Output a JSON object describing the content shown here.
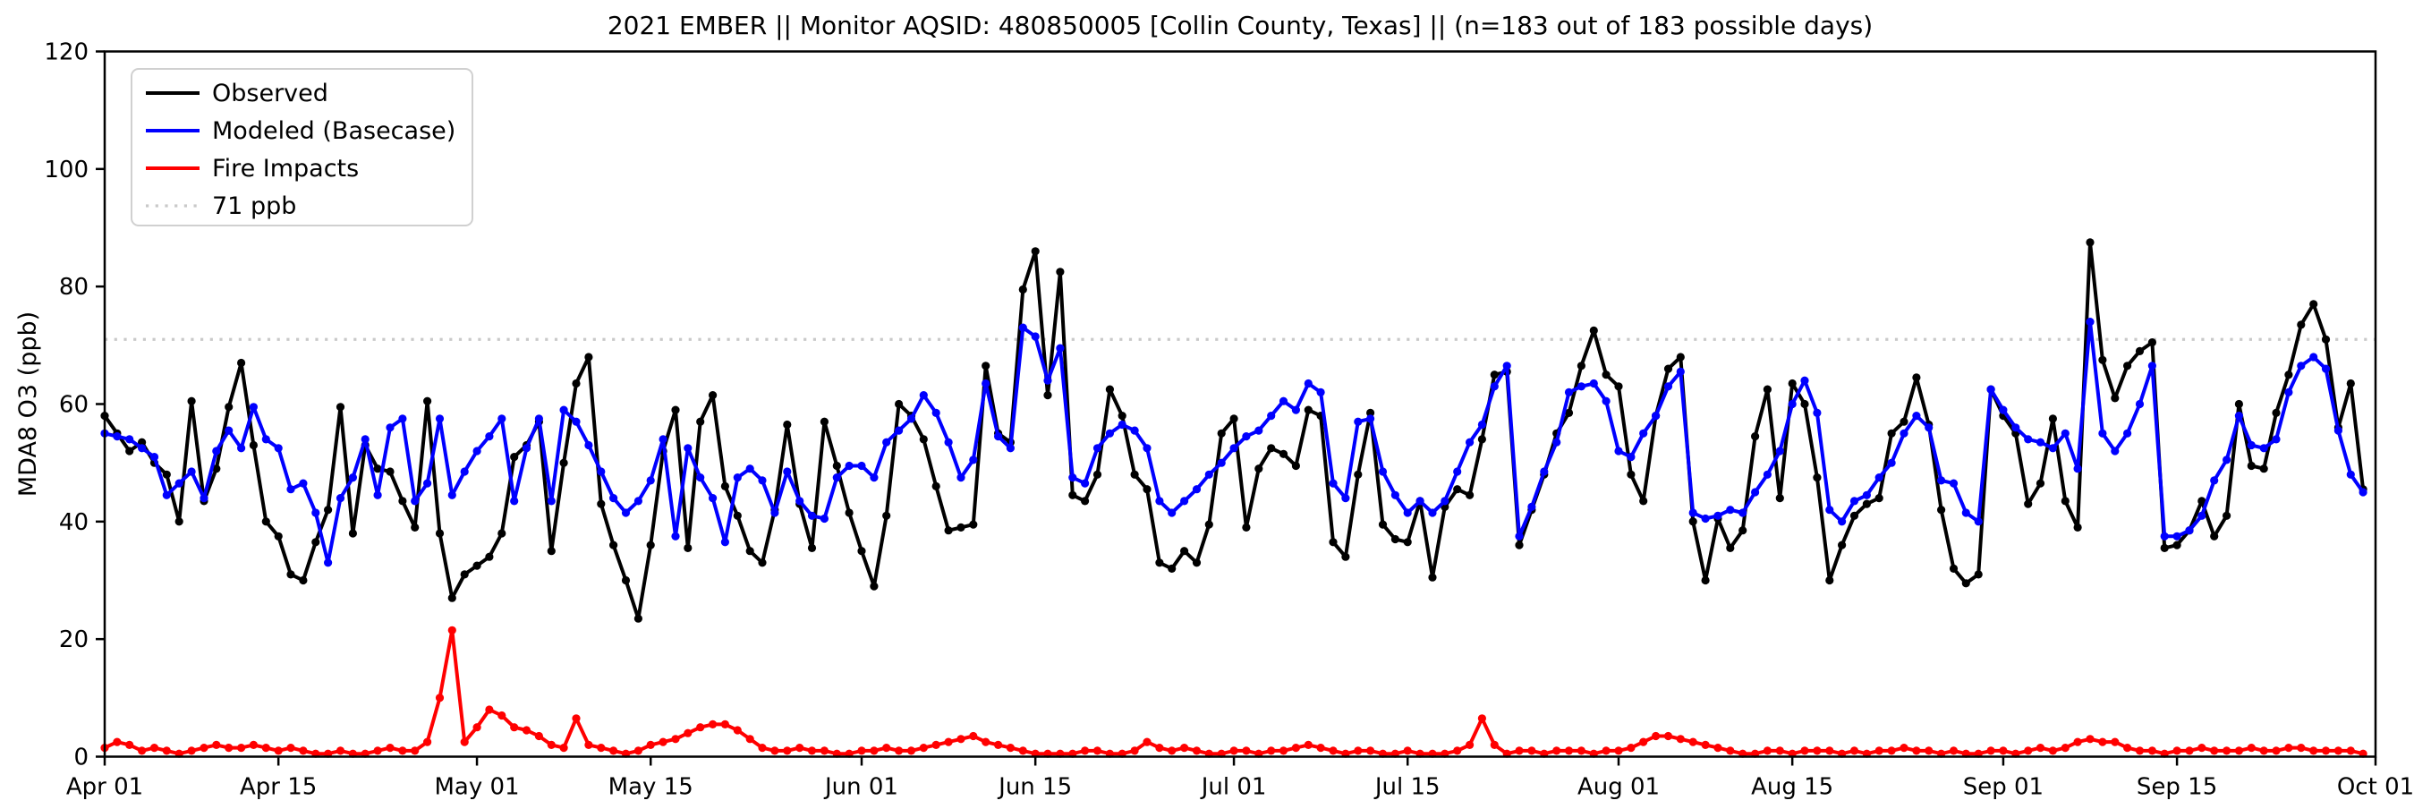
{
  "chart_data": {
    "type": "line",
    "title": "2021 EMBER || Monitor AQSID: 480850005 [Collin County, Texas] || (n=183 out of 183 possible days)",
    "xlabel": "",
    "ylabel": "MDA8 O3 (ppb)",
    "ylim": [
      0,
      120
    ],
    "y_ticks": [
      0,
      20,
      40,
      60,
      80,
      100,
      120
    ],
    "x_range_days": [
      0,
      183
    ],
    "x_ticks": [
      {
        "label": "Apr 01",
        "day": 0
      },
      {
        "label": "Apr 15",
        "day": 14
      },
      {
        "label": "May 01",
        "day": 30
      },
      {
        "label": "May 15",
        "day": 44
      },
      {
        "label": "Jun 01",
        "day": 61
      },
      {
        "label": "Jun 15",
        "day": 75
      },
      {
        "label": "Jul 01",
        "day": 91
      },
      {
        "label": "Jul 15",
        "day": 105
      },
      {
        "label": "Aug 01",
        "day": 122
      },
      {
        "label": "Aug 15",
        "day": 136
      },
      {
        "label": "Sep 01",
        "day": 153
      },
      {
        "label": "Sep 15",
        "day": 167
      },
      {
        "label": "Oct 01",
        "day": 183
      }
    ],
    "grid": false,
    "threshold": {
      "value": 71,
      "label": "71 ppb",
      "color": "#c9c9c9",
      "style": "dotted"
    },
    "legend": {
      "position": "upper-left",
      "entries": [
        {
          "label": "Observed",
          "color": "#000000",
          "line": "solid"
        },
        {
          "label": "Modeled (Basecase)",
          "color": "#0000ff",
          "line": "solid"
        },
        {
          "label": "Fire Impacts",
          "color": "#ff0000",
          "line": "solid"
        },
        {
          "label": "71 ppb",
          "color": "#c9c9c9",
          "line": "dotted"
        }
      ]
    },
    "series": [
      {
        "name": "Observed",
        "color": "#000000",
        "marker": "circle",
        "values": [
          58,
          55,
          52,
          53.5,
          50,
          48,
          40,
          60.5,
          43.5,
          49,
          59.5,
          67,
          53,
          40,
          37.5,
          31,
          30,
          36.5,
          42,
          59.5,
          38,
          53,
          49,
          48.5,
          43.5,
          39,
          60.5,
          38,
          27,
          31,
          32.5,
          34,
          38,
          51,
          53,
          57,
          35,
          50,
          63.5,
          68,
          43,
          36,
          30,
          23.5,
          36,
          52,
          59,
          35.5,
          57,
          61.5,
          46,
          41,
          35,
          33,
          42,
          56.5,
          43,
          35.5,
          57,
          49.5,
          41.5,
          35,
          29,
          41,
          60,
          58,
          54,
          46,
          38.5,
          39,
          39.5,
          66.5,
          55,
          53.5,
          79.5,
          86,
          61.5,
          82.5,
          44.5,
          43.5,
          48,
          62.5,
          58,
          48,
          45.5,
          33,
          32,
          35,
          33,
          39.5,
          55,
          57.5,
          39,
          49,
          52.5,
          51.5,
          49.5,
          59,
          58,
          36.5,
          34,
          48,
          58.5,
          39.5,
          37,
          36.5,
          43.5,
          30.5,
          42.5,
          45.5,
          44.5,
          54,
          65,
          65.5,
          36,
          42,
          48,
          55,
          58.5,
          66.5,
          72.5,
          65,
          63,
          48,
          43.5,
          58,
          66,
          68,
          40,
          30,
          40.5,
          35.5,
          38.5,
          54.5,
          62.5,
          44,
          63.5,
          60,
          47.5,
          30,
          36,
          41,
          43,
          44,
          55,
          57,
          64.5,
          56.5,
          42,
          32,
          29.5,
          31,
          62.5,
          58,
          55,
          43,
          46.5,
          57.5,
          43.5,
          39,
          87.5,
          67.5,
          61,
          66.5,
          69,
          70.5,
          35.5,
          36,
          38.5,
          43.5,
          37.5,
          41,
          60,
          49.5,
          49,
          58.5,
          65,
          73.5,
          77,
          71,
          56,
          63.5,
          45.5
        ]
      },
      {
        "name": "Modeled (Basecase)",
        "color": "#0000ff",
        "marker": "circle",
        "values": [
          55,
          54.5,
          54,
          52.5,
          51,
          44.5,
          46.5,
          48.5,
          44,
          52,
          55.5,
          52.5,
          59.5,
          54,
          52.5,
          45.5,
          46.5,
          41.5,
          33,
          44,
          47.5,
          54,
          44.5,
          56,
          57.5,
          43.5,
          46.5,
          57.5,
          44.5,
          48.5,
          52,
          54.5,
          57.5,
          43.5,
          52.5,
          57.5,
          43.5,
          59,
          57,
          53,
          48.5,
          44,
          41.5,
          43.5,
          47,
          54,
          37.5,
          52.5,
          47.5,
          44,
          36.5,
          47.5,
          49,
          47,
          41.5,
          48.5,
          43.5,
          41,
          40.5,
          47.5,
          49.5,
          49.5,
          47.5,
          53.5,
          55.5,
          57.5,
          61.5,
          58.5,
          53.5,
          47.5,
          50.5,
          63.5,
          54.5,
          52.5,
          73,
          71.5,
          64,
          69.5,
          47.5,
          46.5,
          52.5,
          55,
          56.5,
          55.5,
          52.5,
          43.5,
          41.5,
          43.5,
          45.5,
          48,
          50,
          52.5,
          54.5,
          55.5,
          58,
          60.5,
          59,
          63.5,
          62,
          46.5,
          44,
          57,
          57.5,
          48.5,
          44.5,
          41.5,
          43.5,
          41.5,
          43.5,
          48.5,
          53.5,
          56.5,
          63,
          66.5,
          37.5,
          42.5,
          48.5,
          53.5,
          62,
          63,
          63.5,
          60.5,
          52,
          51,
          55,
          58,
          63,
          65.5,
          41.5,
          40.5,
          41,
          42,
          41.5,
          45,
          48,
          52,
          60,
          64,
          58.5,
          42,
          40,
          43.5,
          44.5,
          47.5,
          50,
          55,
          58,
          56,
          47,
          46.5,
          41.5,
          40,
          62.5,
          59,
          56,
          54,
          53.5,
          52.5,
          55,
          49,
          74,
          55,
          52,
          55,
          60,
          66.5,
          37.5,
          37.5,
          38.5,
          41,
          47,
          50.5,
          58,
          53,
          52.5,
          54,
          62,
          66.5,
          68,
          66,
          55.5,
          48,
          45
        ]
      },
      {
        "name": "Fire Impacts",
        "color": "#ff0000",
        "marker": "circle",
        "values": [
          1.5,
          2.5,
          2,
          1,
          1.5,
          1,
          0.5,
          1,
          1.5,
          2,
          1.5,
          1.5,
          2,
          1.5,
          1,
          1.5,
          1,
          0.5,
          0.5,
          1,
          0.5,
          0.5,
          1,
          1.5,
          1,
          1,
          2.5,
          10,
          21.5,
          2.5,
          5,
          8,
          7,
          5,
          4.5,
          3.5,
          2,
          1.5,
          6.5,
          2,
          1.5,
          1,
          0.5,
          1,
          2,
          2.5,
          3,
          4,
          5,
          5.5,
          5.5,
          4.5,
          3,
          1.5,
          1,
          1,
          1.5,
          1,
          1,
          0.5,
          0.5,
          1,
          1,
          1.5,
          1,
          1,
          1.5,
          2,
          2.5,
          3,
          3.5,
          2.5,
          2,
          1.5,
          1,
          0.5,
          0.5,
          0.5,
          0.5,
          1,
          1,
          0.5,
          0.5,
          1,
          2.5,
          1.5,
          1,
          1.5,
          1,
          0.5,
          0.5,
          1,
          1,
          0.5,
          1,
          1,
          1.5,
          2,
          1.5,
          1,
          0.5,
          1,
          1,
          0.5,
          0.5,
          1,
          0.5,
          0.5,
          0.5,
          1,
          2,
          6.5,
          2,
          0.5,
          1,
          1,
          0.5,
          1,
          1,
          1,
          0.5,
          1,
          1,
          1.5,
          2.5,
          3.5,
          3.5,
          3,
          2.5,
          2,
          1.5,
          1,
          0.5,
          0.5,
          1,
          1,
          0.5,
          1,
          1,
          1,
          0.5,
          1,
          0.5,
          1,
          1,
          1.5,
          1,
          1,
          0.5,
          1,
          0.5,
          0.5,
          1,
          1,
          0.5,
          1,
          1.5,
          1,
          1.5,
          2.5,
          3,
          2.5,
          2.5,
          1.5,
          1,
          1,
          0.5,
          1,
          1,
          1.5,
          1,
          1,
          1,
          1.5,
          1,
          1,
          1.5,
          1.5,
          1,
          1,
          1,
          1,
          0.5
        ]
      }
    ]
  }
}
